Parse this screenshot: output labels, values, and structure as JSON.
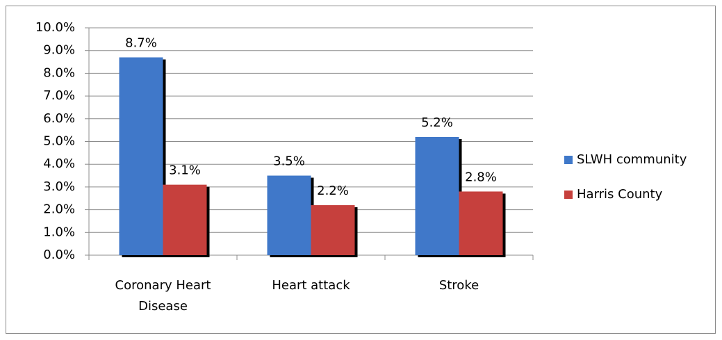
{
  "chart_data": {
    "type": "bar",
    "categories": [
      "Coronary Heart Disease",
      "Heart attack",
      "Stroke"
    ],
    "series": [
      {
        "name": "SLWH community",
        "color": "#3f78c9",
        "values": [
          8.7,
          3.5,
          5.2
        ],
        "value_labels": [
          "8.7%",
          "3.5%",
          "5.2%"
        ]
      },
      {
        "name": "Harris County",
        "color": "#c6403c",
        "values": [
          3.1,
          2.2,
          2.8
        ],
        "value_labels": [
          "3.1%",
          "2.2%",
          "2.8%"
        ]
      }
    ],
    "ylim": [
      0,
      10
    ],
    "yticks": [
      {
        "value": 0,
        "label": "0.0%"
      },
      {
        "value": 1,
        "label": "1.0%"
      },
      {
        "value": 2,
        "label": "2.0%"
      },
      {
        "value": 3,
        "label": "3.0%"
      },
      {
        "value": 4,
        "label": "4.0%"
      },
      {
        "value": 5,
        "label": "5.0%"
      },
      {
        "value": 6,
        "label": "6.0%"
      },
      {
        "value": 7,
        "label": "7.0%"
      },
      {
        "value": 8,
        "label": "8.0%"
      },
      {
        "value": 9,
        "label": "9.0%"
      },
      {
        "value": 10,
        "label": "10.0%"
      }
    ],
    "grid": true,
    "legend": "right"
  }
}
